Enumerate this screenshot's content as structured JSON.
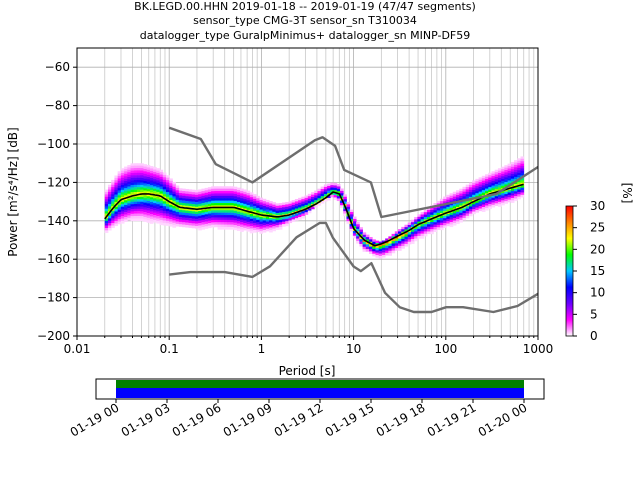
{
  "chart_data": {
    "type": "heatmap",
    "title_lines": [
      "BK.LEGD.00.HHN   2019-01-18 -- 2019-01-19  (47/47 segments)",
      "sensor_type CMG-3T sensor_sn T310034",
      "datalogger_type GuralpMinimus+ datalogger_sn MINP-DF59"
    ],
    "xlabel": "Period [s]",
    "ylabel": "Power [m²/s⁴/Hz] [dB]",
    "x_scale": "log",
    "xlim": [
      0.01,
      1000
    ],
    "ylim": [
      -200,
      -50
    ],
    "x_ticks": [
      {
        "v": 0.01,
        "label": "0.01"
      },
      {
        "v": 0.1,
        "label": "0.1"
      },
      {
        "v": 1,
        "label": "1"
      },
      {
        "v": 10,
        "label": "10"
      },
      {
        "v": 100,
        "label": "100"
      },
      {
        "v": 1000,
        "label": "1000"
      }
    ],
    "y_ticks": [
      {
        "v": -60,
        "label": "−60"
      },
      {
        "v": -80,
        "label": "−80"
      },
      {
        "v": -100,
        "label": "−100"
      },
      {
        "v": -120,
        "label": "−120"
      },
      {
        "v": -140,
        "label": "−140"
      },
      {
        "v": -160,
        "label": "−160"
      },
      {
        "v": -180,
        "label": "−180"
      },
      {
        "v": -200,
        "label": "−200"
      }
    ],
    "grid": true,
    "colorbar": {
      "label": "[%]",
      "range": [
        0,
        30
      ],
      "ticks": [
        {
          "v": 0,
          "label": "0"
        },
        {
          "v": 5,
          "label": "5"
        },
        {
          "v": 10,
          "label": "10"
        },
        {
          "v": 15,
          "label": "15"
        },
        {
          "v": 20,
          "label": "20"
        },
        {
          "v": 25,
          "label": "25"
        },
        {
          "v": 30,
          "label": "30"
        }
      ],
      "colors": [
        "#ffffff",
        "#ff00ff",
        "#6a00ff",
        "#0000ff",
        "#00c8ff",
        "#00ff00",
        "#ffff00",
        "#ff8000",
        "#ff0000"
      ]
    },
    "psd_band": {
      "periods": [
        0.02,
        0.025,
        0.03,
        0.04,
        0.05,
        0.06,
        0.08,
        0.1,
        0.13,
        0.2,
        0.3,
        0.5,
        0.7,
        1,
        1.5,
        2,
        3,
        4,
        5,
        6,
        7,
        8,
        10,
        13,
        17,
        20,
        25,
        30,
        40,
        50,
        70,
        100,
        150,
        200,
        300,
        500,
        700
      ],
      "upper": [
        -125,
        -118,
        -113,
        -110,
        -110,
        -111,
        -113,
        -117,
        -123,
        -124,
        -122,
        -122,
        -124,
        -128,
        -131,
        -130,
        -127,
        -124,
        -121,
        -120,
        -121,
        -126,
        -137,
        -146,
        -150,
        -151,
        -148,
        -145,
        -141,
        -137,
        -132,
        -127,
        -123,
        -119,
        -115,
        -110,
        -106
      ],
      "lower": [
        -146,
        -143,
        -141,
        -139,
        -139,
        -140,
        -141,
        -142,
        -143,
        -144,
        -143,
        -144,
        -145,
        -146,
        -144,
        -141,
        -137,
        -132,
        -129,
        -127,
        -130,
        -136,
        -148,
        -155,
        -158,
        -159,
        -157,
        -155,
        -152,
        -149,
        -146,
        -143,
        -140,
        -136,
        -133,
        -130,
        -127
      ],
      "mean": [
        -139,
        -133,
        -129,
        -127,
        -126,
        -126,
        -127,
        -130,
        -133,
        -134,
        -133,
        -133,
        -135,
        -137,
        -138,
        -137,
        -134,
        -131,
        -128,
        -125,
        -126,
        -132,
        -144,
        -150,
        -153,
        -152,
        -150,
        -148,
        -145,
        -142,
        -139,
        -136,
        -133,
        -130,
        -126,
        -123,
        -121
      ]
    },
    "nhnm": {
      "periods": [
        0.1,
        0.22,
        0.32,
        0.8,
        3.8,
        4.6,
        6.3,
        7.9,
        15.4,
        20,
        354.8,
        1000
      ],
      "values": [
        -91.5,
        -97.4,
        -110.5,
        -120,
        -98,
        -96.5,
        -101,
        -113.5,
        -120,
        -138,
        -126,
        -112
      ]
    },
    "nlnm": {
      "periods": [
        0.1,
        0.17,
        0.4,
        0.8,
        1.24,
        2.4,
        4.3,
        5,
        6,
        10,
        12,
        15.6,
        21.9,
        31.6,
        45,
        70,
        101,
        154,
        328,
        600,
        1000
      ],
      "values": [
        -168,
        -166.7,
        -166.7,
        -169.2,
        -163.7,
        -148.6,
        -141.1,
        -141.1,
        -149,
        -163.8,
        -166.2,
        -162.1,
        -177.5,
        -185,
        -187.5,
        -187.5,
        -185,
        -185,
        -187.5,
        -184.4,
        -178
      ]
    },
    "timeline": {
      "tick_labels": [
        "01-19 00",
        "01-19 03",
        "01-19 06",
        "01-19 09",
        "01-19 12",
        "01-19 15",
        "01-19 18",
        "01-19 21",
        "01-20 00"
      ],
      "start": "01-19 00",
      "end": "01-20 00",
      "colors": {
        "top": "#008000",
        "bottom": "#0000ff"
      }
    }
  }
}
